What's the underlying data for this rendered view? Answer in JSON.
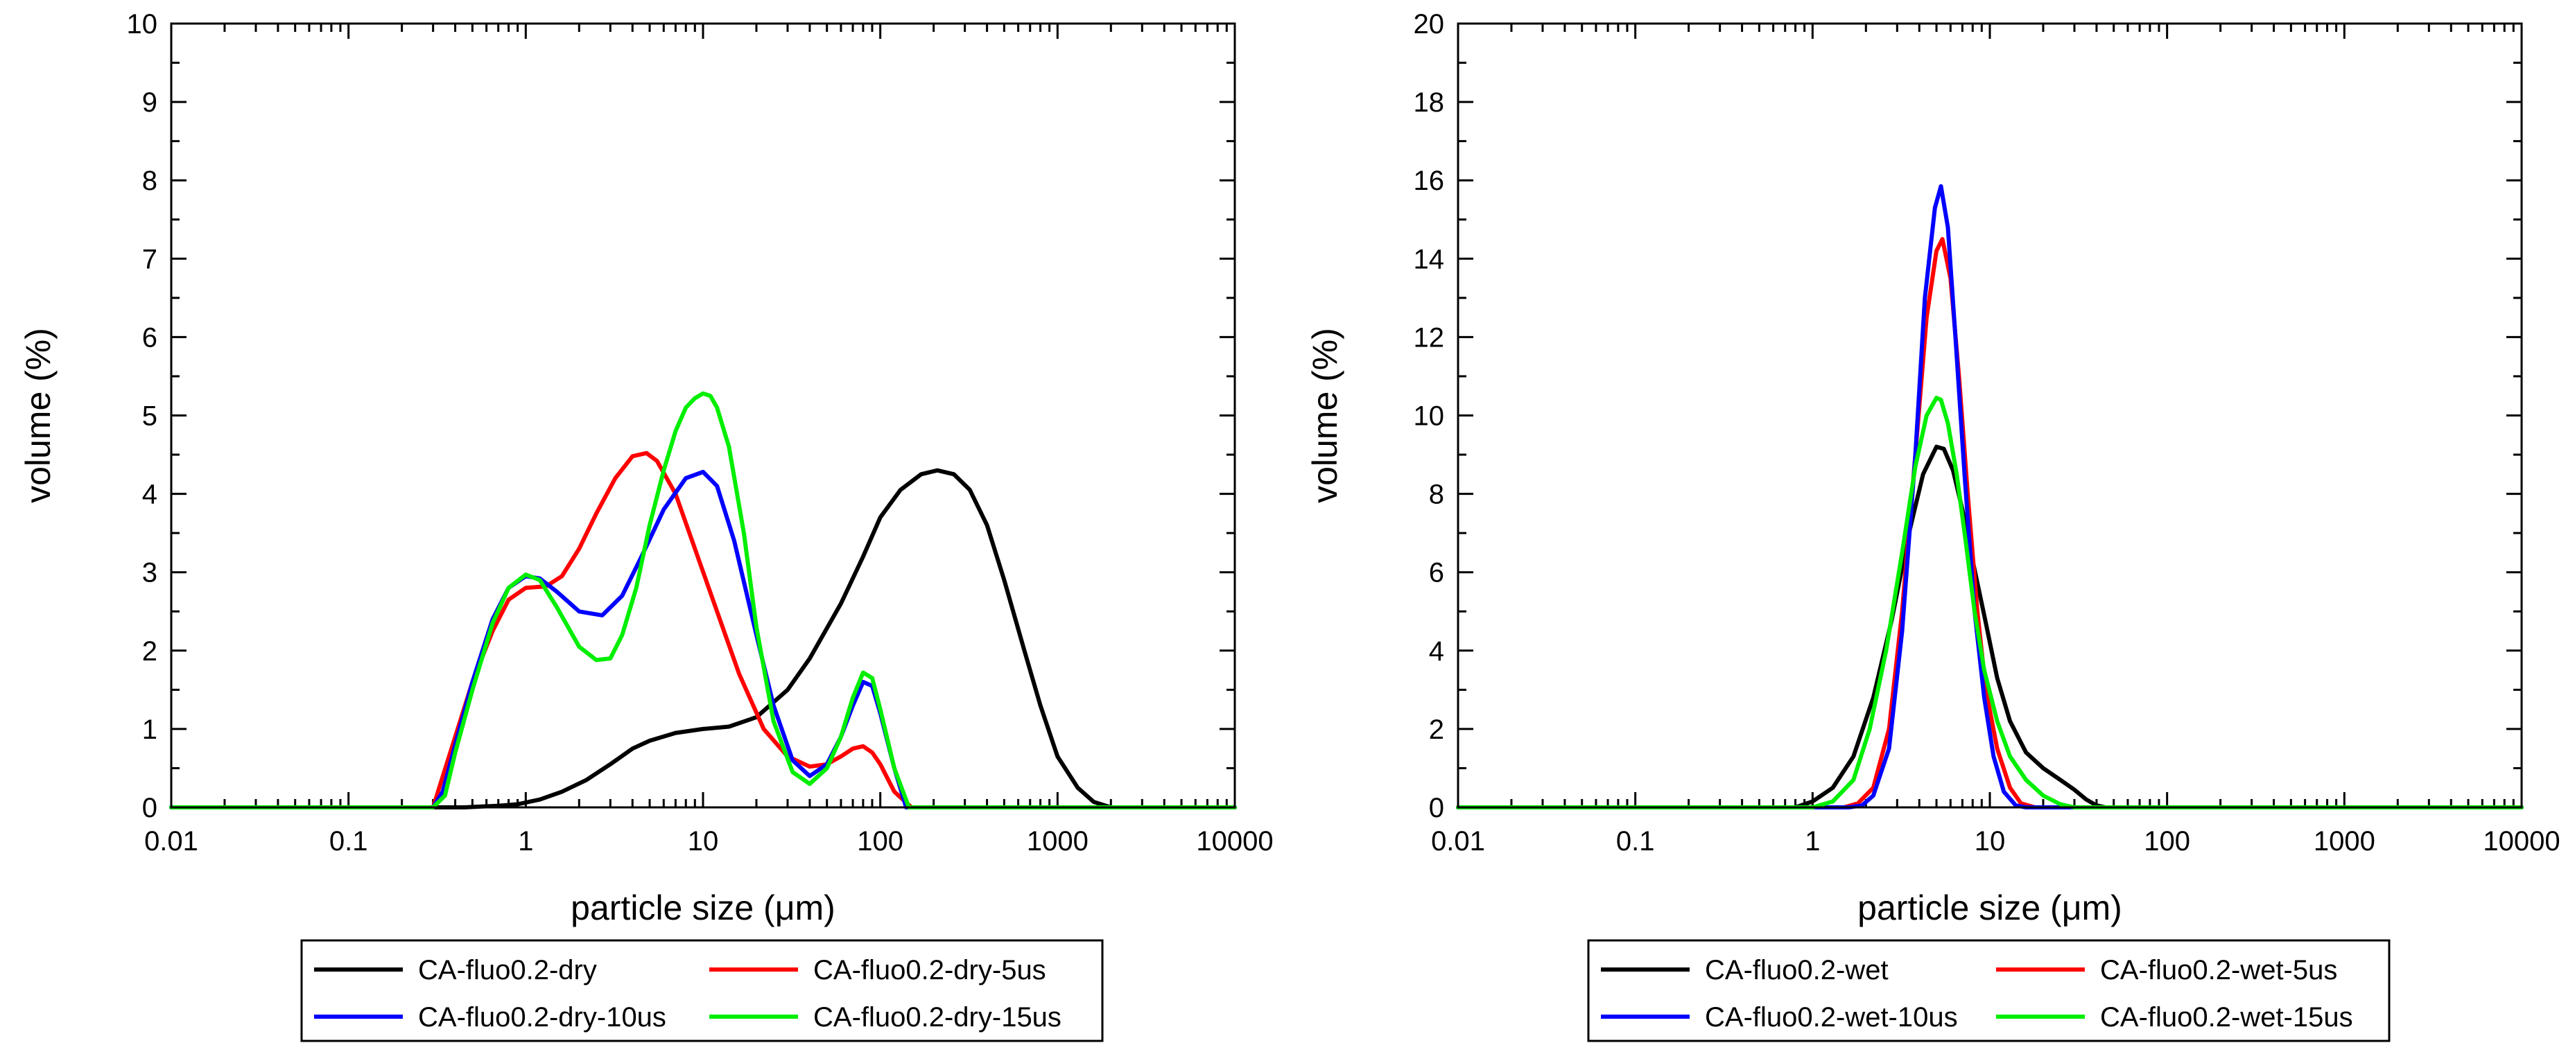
{
  "chart_data": [
    {
      "type": "line",
      "xscale": "log",
      "xlim": [
        0.01,
        10000
      ],
      "ylim": [
        0,
        10
      ],
      "xticks": [
        "0.01",
        "0.1",
        "1",
        "10",
        "100",
        "1000",
        "10000"
      ],
      "yticks": [
        "0",
        "1",
        "2",
        "3",
        "4",
        "5",
        "6",
        "7",
        "8",
        "9",
        "10"
      ],
      "xlabel": "particle size (μm)",
      "ylabel": "volume (%)",
      "legend_position": "bottom",
      "series": [
        {
          "name": "CA-fluo0.2-dry",
          "color": "#000000",
          "x": [
            0.01,
            0.45,
            0.55,
            0.7,
            0.9,
            1.2,
            1.6,
            2.2,
            3,
            4,
            5,
            7,
            10,
            14,
            20,
            30,
            40,
            60,
            80,
            100,
            130,
            170,
            210,
            260,
            320,
            400,
            500,
            650,
            800,
            1000,
            1300,
            1600,
            2000,
            10000
          ],
          "y": [
            0,
            0,
            0.01,
            0.02,
            0.04,
            0.1,
            0.2,
            0.35,
            0.55,
            0.75,
            0.85,
            0.95,
            1.0,
            1.03,
            1.15,
            1.5,
            1.9,
            2.6,
            3.2,
            3.7,
            4.05,
            4.25,
            4.3,
            4.25,
            4.05,
            3.6,
            2.9,
            2.0,
            1.3,
            0.65,
            0.25,
            0.07,
            0,
            0
          ]
        },
        {
          "name": "CA-fluo0.2-dry-5us",
          "color": "#ff0000",
          "x": [
            0.01,
            0.3,
            0.33,
            0.4,
            0.5,
            0.65,
            0.8,
            1.0,
            1.3,
            1.6,
            2.0,
            2.5,
            3.2,
            4.0,
            4.8,
            5.5,
            7,
            9,
            12,
            16,
            22,
            30,
            40,
            50,
            60,
            70,
            80,
            90,
            100,
            120,
            150,
            10000
          ],
          "y": [
            0,
            0,
            0.3,
            0.9,
            1.6,
            2.25,
            2.65,
            2.8,
            2.82,
            2.95,
            3.3,
            3.75,
            4.2,
            4.48,
            4.52,
            4.42,
            4.0,
            3.3,
            2.5,
            1.7,
            1.0,
            0.65,
            0.52,
            0.55,
            0.65,
            0.75,
            0.78,
            0.7,
            0.55,
            0.2,
            0,
            0
          ]
        },
        {
          "name": "CA-fluo0.2-dry-10us",
          "color": "#0000ff",
          "x": [
            0.01,
            0.3,
            0.34,
            0.4,
            0.5,
            0.65,
            0.8,
            1.0,
            1.2,
            1.5,
            2.0,
            2.7,
            3.5,
            4.5,
            6,
            8,
            10,
            12,
            15,
            20,
            25,
            32,
            40,
            50,
            60,
            70,
            80,
            90,
            100,
            120,
            140,
            10000
          ],
          "y": [
            0,
            0,
            0.2,
            0.8,
            1.6,
            2.4,
            2.8,
            2.95,
            2.92,
            2.75,
            2.5,
            2.45,
            2.7,
            3.2,
            3.8,
            4.2,
            4.28,
            4.1,
            3.4,
            2.2,
            1.3,
            0.6,
            0.4,
            0.55,
            0.9,
            1.3,
            1.6,
            1.55,
            1.2,
            0.5,
            0,
            0
          ]
        },
        {
          "name": "CA-fluo0.2-dry-15us",
          "color": "#00ee00",
          "x": [
            0.01,
            0.3,
            0.35,
            0.4,
            0.5,
            0.65,
            0.8,
            1.0,
            1.2,
            1.5,
            2.0,
            2.5,
            3.0,
            3.5,
            4.2,
            5,
            6,
            7,
            8,
            9,
            10,
            11,
            12,
            14,
            17,
            20,
            25,
            32,
            40,
            50,
            60,
            70,
            80,
            90,
            100,
            120,
            145,
            10000
          ],
          "y": [
            0,
            0,
            0.15,
            0.7,
            1.5,
            2.35,
            2.8,
            2.97,
            2.9,
            2.55,
            2.05,
            1.88,
            1.9,
            2.2,
            2.8,
            3.6,
            4.3,
            4.8,
            5.1,
            5.22,
            5.28,
            5.25,
            5.1,
            4.6,
            3.5,
            2.3,
            1.1,
            0.45,
            0.3,
            0.5,
            0.9,
            1.4,
            1.72,
            1.65,
            1.25,
            0.5,
            0,
            0
          ]
        }
      ]
    },
    {
      "type": "line",
      "xscale": "log",
      "xlim": [
        0.01,
        10000
      ],
      "ylim": [
        0,
        20
      ],
      "xticks": [
        "0.01",
        "0.1",
        "1",
        "10",
        "100",
        "1000",
        "10000"
      ],
      "yticks": [
        "0",
        "2",
        "4",
        "6",
        "8",
        "10",
        "12",
        "14",
        "16",
        "18",
        "20"
      ],
      "xlabel": "particle size (μm)",
      "ylabel": "volume (%)",
      "legend_position": "bottom",
      "series": [
        {
          "name": "CA-fluo0.2-wet",
          "color": "#000000",
          "x": [
            0.01,
            0.8,
            1.0,
            1.3,
            1.7,
            2.2,
            2.8,
            3.5,
            4.2,
            5.0,
            5.5,
            6.2,
            7.0,
            8.0,
            9.5,
            11,
            13,
            16,
            20,
            25,
            30,
            35,
            40,
            45,
            10000
          ],
          "y": [
            0,
            0,
            0.15,
            0.5,
            1.3,
            2.8,
            4.8,
            7.0,
            8.5,
            9.2,
            9.15,
            8.6,
            7.6,
            6.3,
            4.7,
            3.3,
            2.2,
            1.4,
            1.0,
            0.7,
            0.45,
            0.2,
            0.05,
            0,
            0
          ]
        },
        {
          "name": "CA-fluo0.2-wet-5us",
          "color": "#ff0000",
          "x": [
            0.01,
            1.5,
            1.8,
            2.2,
            2.7,
            3.2,
            3.8,
            4.4,
            5.0,
            5.4,
            6.0,
            6.7,
            7.5,
            8.5,
            9.5,
            11,
            13,
            15,
            18,
            10000
          ],
          "y": [
            0,
            0,
            0.1,
            0.5,
            2.0,
            5.0,
            9.0,
            12.5,
            14.2,
            14.5,
            13.5,
            11.0,
            8.0,
            5.0,
            3.0,
            1.5,
            0.5,
            0.1,
            0,
            0
          ]
        },
        {
          "name": "CA-fluo0.2-wet-10us",
          "color": "#0000ff",
          "x": [
            0.01,
            1.6,
            1.9,
            2.2,
            2.7,
            3.2,
            3.8,
            4.3,
            4.9,
            5.3,
            5.8,
            6.4,
            7.2,
            8.2,
            9.3,
            10.5,
            12,
            14,
            16,
            10000
          ],
          "y": [
            0,
            0,
            0.05,
            0.3,
            1.5,
            4.5,
            9.0,
            13.0,
            15.3,
            15.85,
            14.8,
            12.0,
            8.5,
            5.0,
            2.8,
            1.3,
            0.4,
            0.05,
            0,
            0
          ]
        },
        {
          "name": "CA-fluo0.2-wet-15us",
          "color": "#00ee00",
          "x": [
            0.01,
            1.0,
            1.3,
            1.7,
            2.1,
            2.6,
            3.2,
            3.8,
            4.4,
            5.0,
            5.3,
            5.8,
            6.5,
            7.3,
            8.2,
            9.3,
            11,
            13,
            16,
            20,
            25,
            30,
            10000
          ],
          "y": [
            0,
            0,
            0.15,
            0.7,
            2.0,
            4.0,
            6.5,
            8.7,
            10.0,
            10.45,
            10.4,
            9.8,
            8.5,
            6.8,
            5.0,
            3.5,
            2.2,
            1.3,
            0.7,
            0.3,
            0.08,
            0,
            0
          ]
        }
      ]
    }
  ]
}
